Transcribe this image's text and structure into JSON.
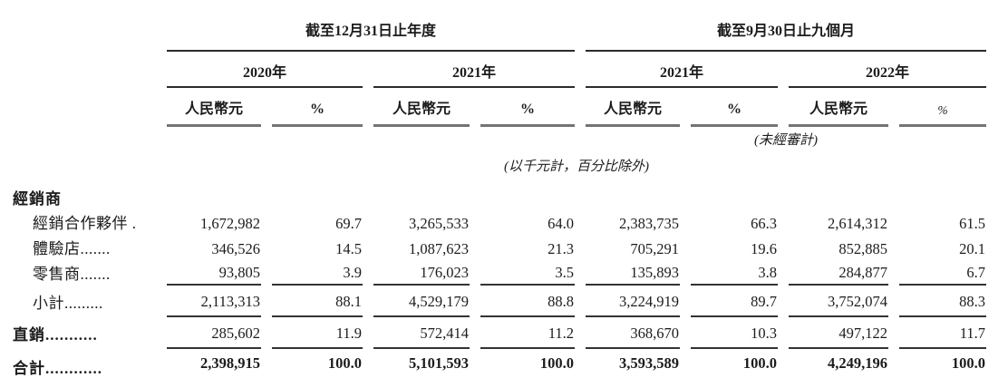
{
  "table": {
    "groups": {
      "annual": "截至12月31日止年度",
      "interim": "截至9月30日止九個月"
    },
    "years": [
      "2020年",
      "2021年",
      "2021年",
      "2022年"
    ],
    "col_headers": {
      "currency": "人民幣元",
      "percent": "%"
    },
    "notes": {
      "unaudited": "(未經審計)",
      "units": "(以千元計，百分比除外)"
    },
    "rows": [
      {
        "label": "經銷商",
        "values": [
          "",
          "",
          "",
          "",
          "",
          "",
          "",
          ""
        ]
      },
      {
        "label": "經銷合作夥伴 .",
        "values": [
          "1,672,982",
          "69.7",
          "3,265,533",
          "64.0",
          "2,383,735",
          "66.3",
          "2,614,312",
          "61.5"
        ]
      },
      {
        "label": "體驗店.......",
        "values": [
          "346,526",
          "14.5",
          "1,087,623",
          "21.3",
          "705,291",
          "19.6",
          "852,885",
          "20.1"
        ]
      },
      {
        "label": "零售商.......",
        "values": [
          "93,805",
          "3.9",
          "176,023",
          "3.5",
          "135,893",
          "3.8",
          "284,877",
          "6.7"
        ]
      },
      {
        "label": "小計.........",
        "values": [
          "2,113,313",
          "88.1",
          "4,529,179",
          "88.8",
          "3,224,919",
          "89.7",
          "3,752,074",
          "88.3"
        ]
      },
      {
        "label": "直銷...........",
        "values": [
          "285,602",
          "11.9",
          "572,414",
          "11.2",
          "368,670",
          "10.3",
          "497,122",
          "11.7"
        ]
      },
      {
        "label": "合計............",
        "values": [
          "2,398,915",
          "100.0",
          "5,101,593",
          "100.0",
          "3,593,589",
          "100.0",
          "4,249,196",
          "100.0"
        ]
      }
    ]
  }
}
